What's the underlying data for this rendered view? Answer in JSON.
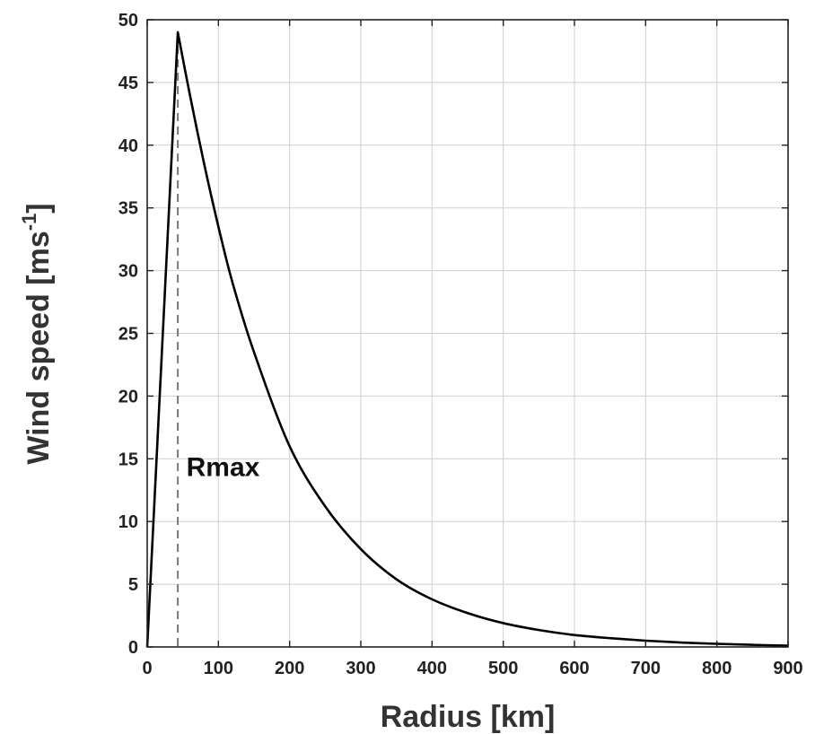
{
  "chart_data": {
    "type": "line",
    "title": "",
    "xlabel": "Radius [km]",
    "ylabel_main": "Wind speed [ms",
    "ylabel_sup": "-1",
    "ylabel_close": "]",
    "xlim": [
      0,
      900
    ],
    "ylim": [
      0,
      50
    ],
    "xticks": [
      0,
      100,
      200,
      300,
      400,
      500,
      600,
      700,
      800,
      900
    ],
    "yticks": [
      0,
      5,
      10,
      15,
      20,
      25,
      30,
      35,
      40,
      45,
      50
    ],
    "grid": true,
    "series": [
      {
        "x": [
          0,
          43,
          60,
          80,
          100,
          120,
          150,
          200,
          250,
          300,
          350,
          400,
          450,
          500,
          550,
          600,
          650,
          700,
          750,
          800,
          850,
          900
        ],
        "y": [
          0,
          49,
          44,
          38.5,
          33.5,
          29,
          23.5,
          16,
          11.2,
          7.8,
          5.4,
          3.8,
          2.7,
          1.9,
          1.35,
          0.95,
          0.7,
          0.5,
          0.35,
          0.25,
          0.17,
          0.1
        ]
      }
    ],
    "reference_line": {
      "x": 43
    },
    "annotations": [
      {
        "text": "Rmax",
        "x": 55,
        "y": 14.4
      }
    ],
    "colors": {
      "line": "#000000",
      "reference": "#777777",
      "grid": "#cfcfcf",
      "axes": "#222222"
    }
  }
}
